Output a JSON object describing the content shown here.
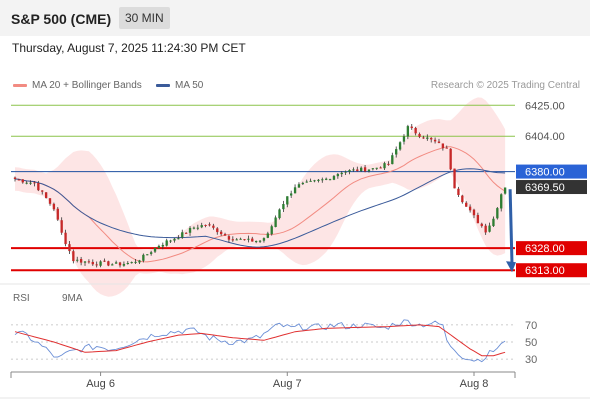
{
  "header": {
    "symbol": "S&P 500 (CME)",
    "interval": "30 MIN"
  },
  "datetime": "Thursday, August 7, 2025 11:24:30 PM CET",
  "legend": {
    "ma20": "MA 20 + Bollinger Bands",
    "ma50": "MA 50",
    "rsi": "RSI",
    "rsi_ma": "9MA"
  },
  "credit": "Research © 2025 Trading Central",
  "colors": {
    "ma20": "#f28b82",
    "band": "#fde0e0",
    "ma50": "#3b5b9a",
    "resistance": "#8bc34a",
    "support": "#e00000",
    "pivot": "#1e4fa0",
    "current": "#333333",
    "arrow": "#2f5fa8",
    "rsi": "#6b8fd6",
    "rsi_ma": "#e03030",
    "up": "#2e7d32",
    "down": "#c62828"
  },
  "chart_data": {
    "type": "candlestick",
    "x_ticks": [
      "Aug 6",
      "Aug 7",
      "Aug 8"
    ],
    "ylim": [
      6305,
      6432
    ],
    "levels": [
      {
        "value": 6425.0,
        "label": "6425.00",
        "kind": "resistance"
      },
      {
        "value": 6404.0,
        "label": "6404.00",
        "kind": "resistance"
      },
      {
        "value": 6380.0,
        "label": "6380.00",
        "kind": "pivot"
      },
      {
        "value": 6369.5,
        "label": "6369.50",
        "kind": "current"
      },
      {
        "value": 6328.0,
        "label": "6328.00",
        "kind": "support"
      },
      {
        "value": 6313.0,
        "label": "6313.00",
        "kind": "support"
      }
    ],
    "forecast_arrow": {
      "from": 6368,
      "to": 6313
    },
    "close_path": [
      [
        0,
        6375
      ],
      [
        5,
        6372
      ],
      [
        10,
        6355
      ],
      [
        12,
        6338
      ],
      [
        15,
        6320
      ],
      [
        20,
        6318
      ],
      [
        26,
        6317
      ],
      [
        30,
        6318
      ],
      [
        33,
        6322
      ],
      [
        37,
        6330
      ],
      [
        42,
        6336
      ],
      [
        46,
        6342
      ],
      [
        49,
        6344
      ],
      [
        52,
        6340
      ],
      [
        55,
        6335
      ],
      [
        60,
        6333
      ],
      [
        63,
        6333
      ],
      [
        65,
        6337
      ],
      [
        68,
        6355
      ],
      [
        72,
        6370
      ],
      [
        77,
        6373
      ],
      [
        80,
        6375
      ],
      [
        84,
        6380
      ],
      [
        88,
        6381
      ],
      [
        92,
        6382
      ],
      [
        96,
        6385
      ],
      [
        99,
        6400
      ],
      [
        101,
        6410
      ],
      [
        104,
        6405
      ],
      [
        108,
        6400
      ],
      [
        111,
        6395
      ],
      [
        113,
        6370
      ],
      [
        116,
        6356
      ],
      [
        119,
        6346
      ],
      [
        121,
        6340
      ],
      [
        123,
        6348
      ],
      [
        125,
        6365
      ],
      [
        126,
        6370
      ]
    ],
    "rsi": {
      "levels": [
        70,
        50,
        30
      ],
      "path": [
        [
          0,
          60
        ],
        [
          3,
          58
        ],
        [
          6,
          48
        ],
        [
          9,
          38
        ],
        [
          11,
          30
        ],
        [
          14,
          38
        ],
        [
          17,
          42
        ],
        [
          21,
          45
        ],
        [
          25,
          42
        ],
        [
          29,
          48
        ],
        [
          33,
          55
        ],
        [
          37,
          60
        ],
        [
          41,
          62
        ],
        [
          44,
          64
        ],
        [
          47,
          62
        ],
        [
          50,
          55
        ],
        [
          53,
          52
        ],
        [
          56,
          50
        ],
        [
          60,
          52
        ],
        [
          63,
          56
        ],
        [
          65,
          62
        ],
        [
          68,
          70
        ],
        [
          71,
          66
        ],
        [
          74,
          68
        ],
        [
          77,
          67
        ],
        [
          80,
          68
        ],
        [
          83,
          70
        ],
        [
          86,
          68
        ],
        [
          89,
          70
        ],
        [
          92,
          68
        ],
        [
          95,
          66
        ],
        [
          98,
          72
        ],
        [
          101,
          74
        ],
        [
          104,
          70
        ],
        [
          107,
          72
        ],
        [
          110,
          70
        ],
        [
          111,
          50
        ],
        [
          113,
          42
        ],
        [
          115,
          34
        ],
        [
          117,
          30
        ],
        [
          119,
          29
        ],
        [
          121,
          33
        ],
        [
          123,
          40
        ],
        [
          125,
          47
        ],
        [
          126,
          48
        ]
      ],
      "ma_path": [
        [
          0,
          62
        ],
        [
          10,
          50
        ],
        [
          18,
          38
        ],
        [
          26,
          40
        ],
        [
          34,
          50
        ],
        [
          42,
          58
        ],
        [
          48,
          60
        ],
        [
          56,
          55
        ],
        [
          64,
          52
        ],
        [
          72,
          62
        ],
        [
          80,
          66
        ],
        [
          88,
          67
        ],
        [
          96,
          68
        ],
        [
          104,
          70
        ],
        [
          109,
          68
        ],
        [
          113,
          55
        ],
        [
          117,
          42
        ],
        [
          120,
          34
        ],
        [
          123,
          34
        ],
        [
          126,
          38
        ]
      ]
    }
  }
}
